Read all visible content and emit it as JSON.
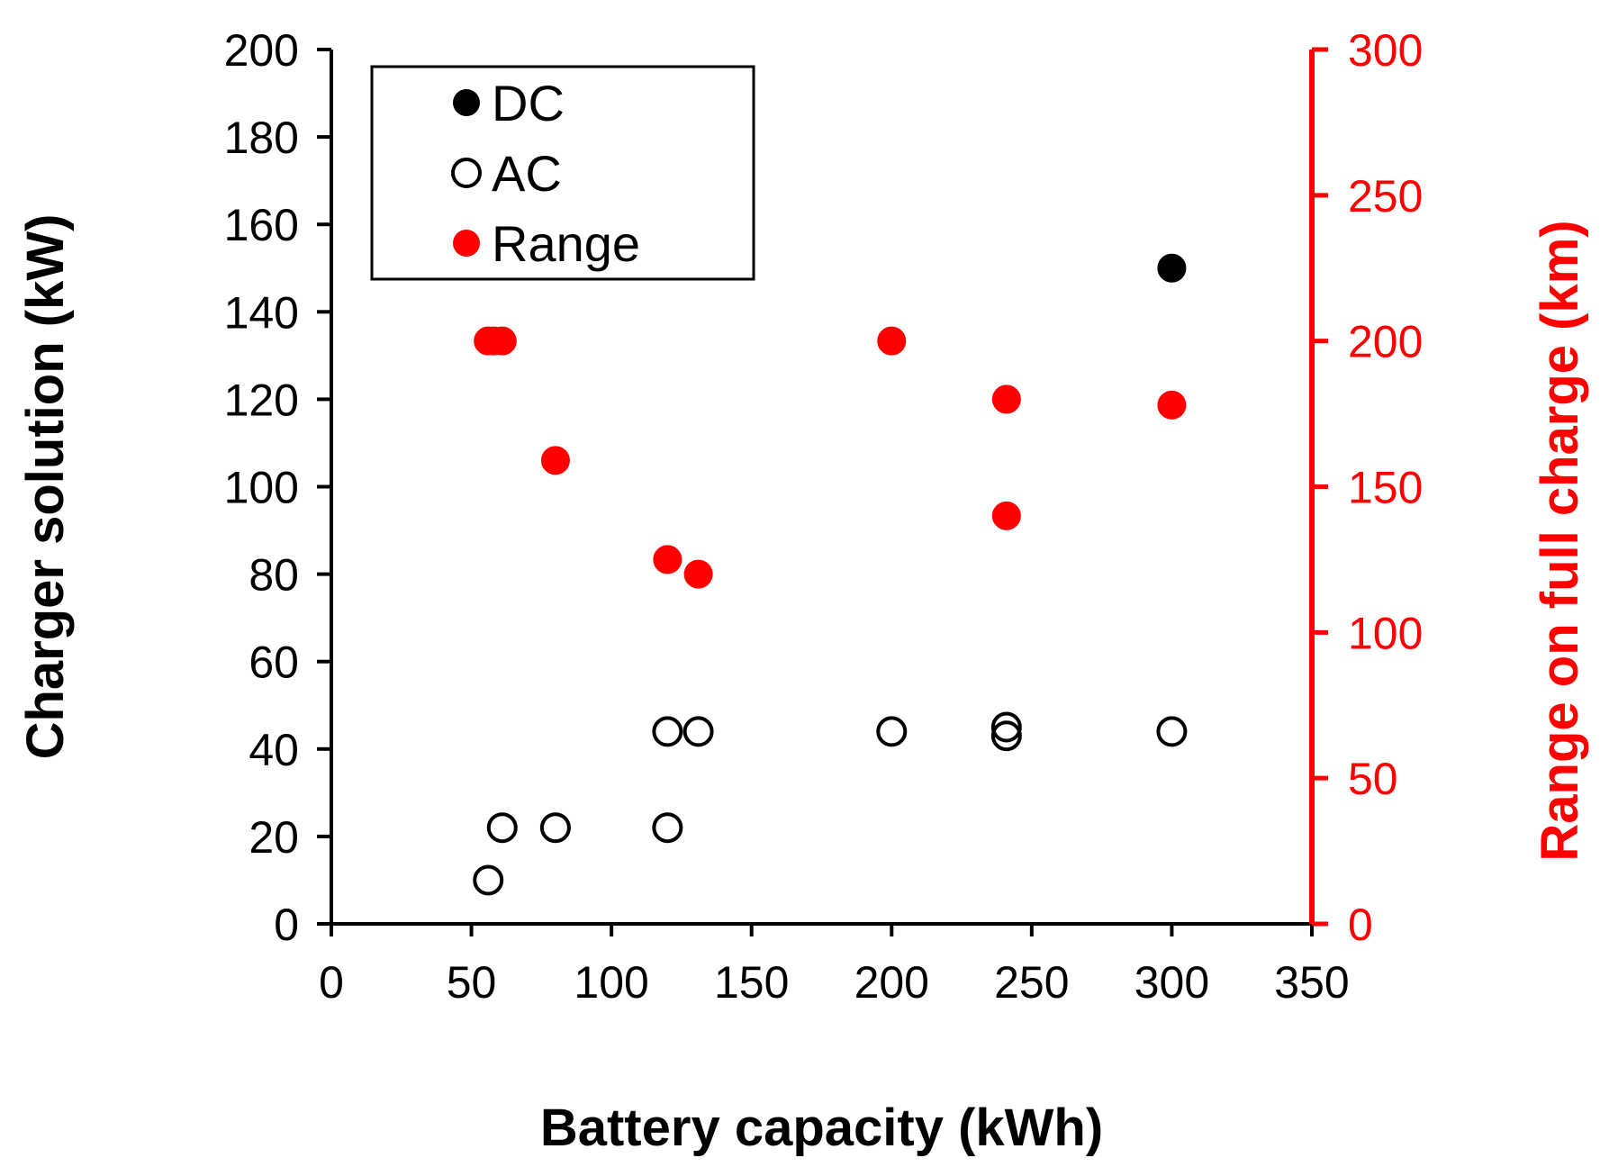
{
  "chart_data": {
    "type": "scatter",
    "xlabel": "Battery capacity (kWh)",
    "ylabel": "Charger solution (kW)",
    "y2label": "Range on full charge (km)",
    "xlim": [
      0,
      350
    ],
    "ylim": [
      0,
      200
    ],
    "y2lim": [
      0,
      300
    ],
    "x_ticks": [
      0,
      50,
      100,
      150,
      200,
      250,
      300,
      350
    ],
    "y_ticks": [
      0,
      20,
      40,
      60,
      80,
      100,
      120,
      140,
      160,
      180,
      200
    ],
    "y2_ticks": [
      0,
      50,
      100,
      150,
      200,
      250,
      300
    ],
    "grid": false,
    "legend_position": "top-left",
    "series": [
      {
        "name": "DC",
        "axis": "left",
        "marker": "filled-circle",
        "color": "#000000",
        "points": [
          [
            300,
            150
          ]
        ]
      },
      {
        "name": "AC",
        "axis": "left",
        "marker": "open-circle",
        "color": "#000000",
        "points": [
          [
            56,
            10
          ],
          [
            61,
            22
          ],
          [
            80,
            22
          ],
          [
            120,
            22
          ],
          [
            120,
            44
          ],
          [
            131,
            44
          ],
          [
            200,
            44
          ],
          [
            241,
            43
          ],
          [
            241,
            45
          ],
          [
            300,
            44
          ]
        ]
      },
      {
        "name": "Range",
        "axis": "right",
        "marker": "filled-circle",
        "color": "#ff0000",
        "points": [
          [
            56,
            200
          ],
          [
            58,
            200
          ],
          [
            61,
            200
          ],
          [
            80,
            159
          ],
          [
            120,
            125
          ],
          [
            131,
            120
          ],
          [
            200,
            200
          ],
          [
            241,
            180
          ],
          [
            241,
            140
          ],
          [
            300,
            178
          ]
        ]
      }
    ],
    "colors": {
      "right_axis": "#ff0000",
      "left_axis": "#000000"
    }
  }
}
